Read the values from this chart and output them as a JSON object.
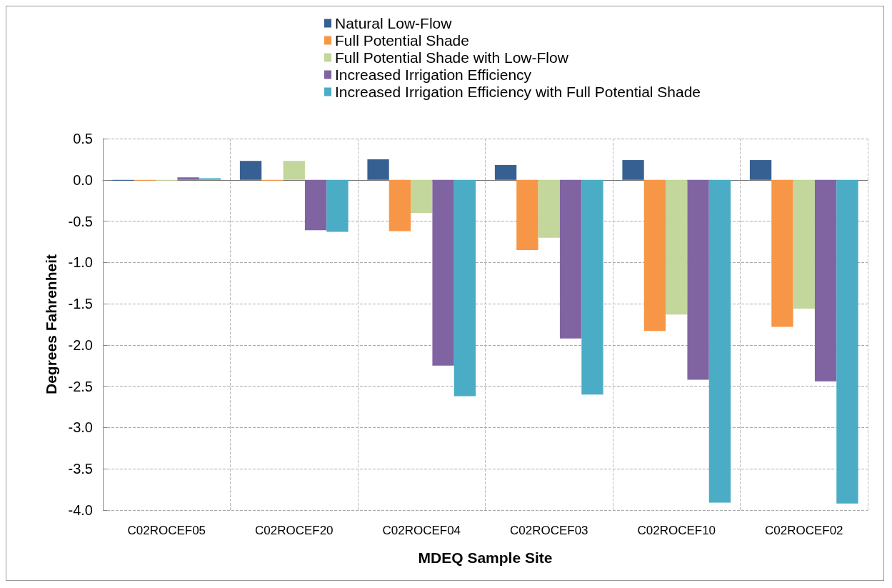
{
  "chart_data": {
    "type": "bar",
    "xlabel": "MDEQ Sample Site",
    "ylabel": "Degrees Fahrenheit",
    "categories": [
      "C02ROCEF05",
      "C02ROCEF20",
      "C02ROCEF04",
      "C02ROCEF03",
      "C02ROCEF10",
      "C02ROCEF02"
    ],
    "series": [
      {
        "name": "Natural Low-Flow",
        "color": "#376092",
        "values": [
          -0.01,
          0.23,
          0.25,
          0.18,
          0.24,
          0.24
        ]
      },
      {
        "name": "Full Potential Shade",
        "color": "#f79646",
        "values": [
          -0.01,
          -0.01,
          -0.62,
          -0.85,
          -1.83,
          -1.78
        ]
      },
      {
        "name": "Full Potential Shade with Low-Flow",
        "color": "#c3d69b",
        "values": [
          -0.01,
          0.23,
          -0.4,
          -0.7,
          -1.63,
          -1.56
        ]
      },
      {
        "name": "Increased Irrigation Efficiency",
        "color": "#8064a2",
        "values": [
          0.03,
          -0.61,
          -2.25,
          -1.92,
          -2.42,
          -2.44
        ]
      },
      {
        "name": "Increased Irrigation Efficiency with Full Potential Shade",
        "color": "#4bacc6",
        "values": [
          0.02,
          -0.63,
          -2.62,
          -2.6,
          -3.91,
          -3.92
        ]
      }
    ],
    "ylim": [
      -4,
      0.5
    ],
    "yticks": [
      {
        "value": -4,
        "label": "-4.0"
      },
      {
        "value": -3.5,
        "label": "-3.5"
      },
      {
        "value": -3,
        "label": "-3.0"
      },
      {
        "value": -2.5,
        "label": "-2.5"
      },
      {
        "value": -2,
        "label": "-2.0"
      },
      {
        "value": -1.5,
        "label": "-1.5"
      },
      {
        "value": -1,
        "label": "-1.0"
      },
      {
        "value": -0.5,
        "label": "-0.5"
      },
      {
        "value": 0,
        "label": "0.0"
      },
      {
        "value": 0.5,
        "label": "0.5"
      }
    ],
    "grid": true,
    "legend": "top"
  }
}
